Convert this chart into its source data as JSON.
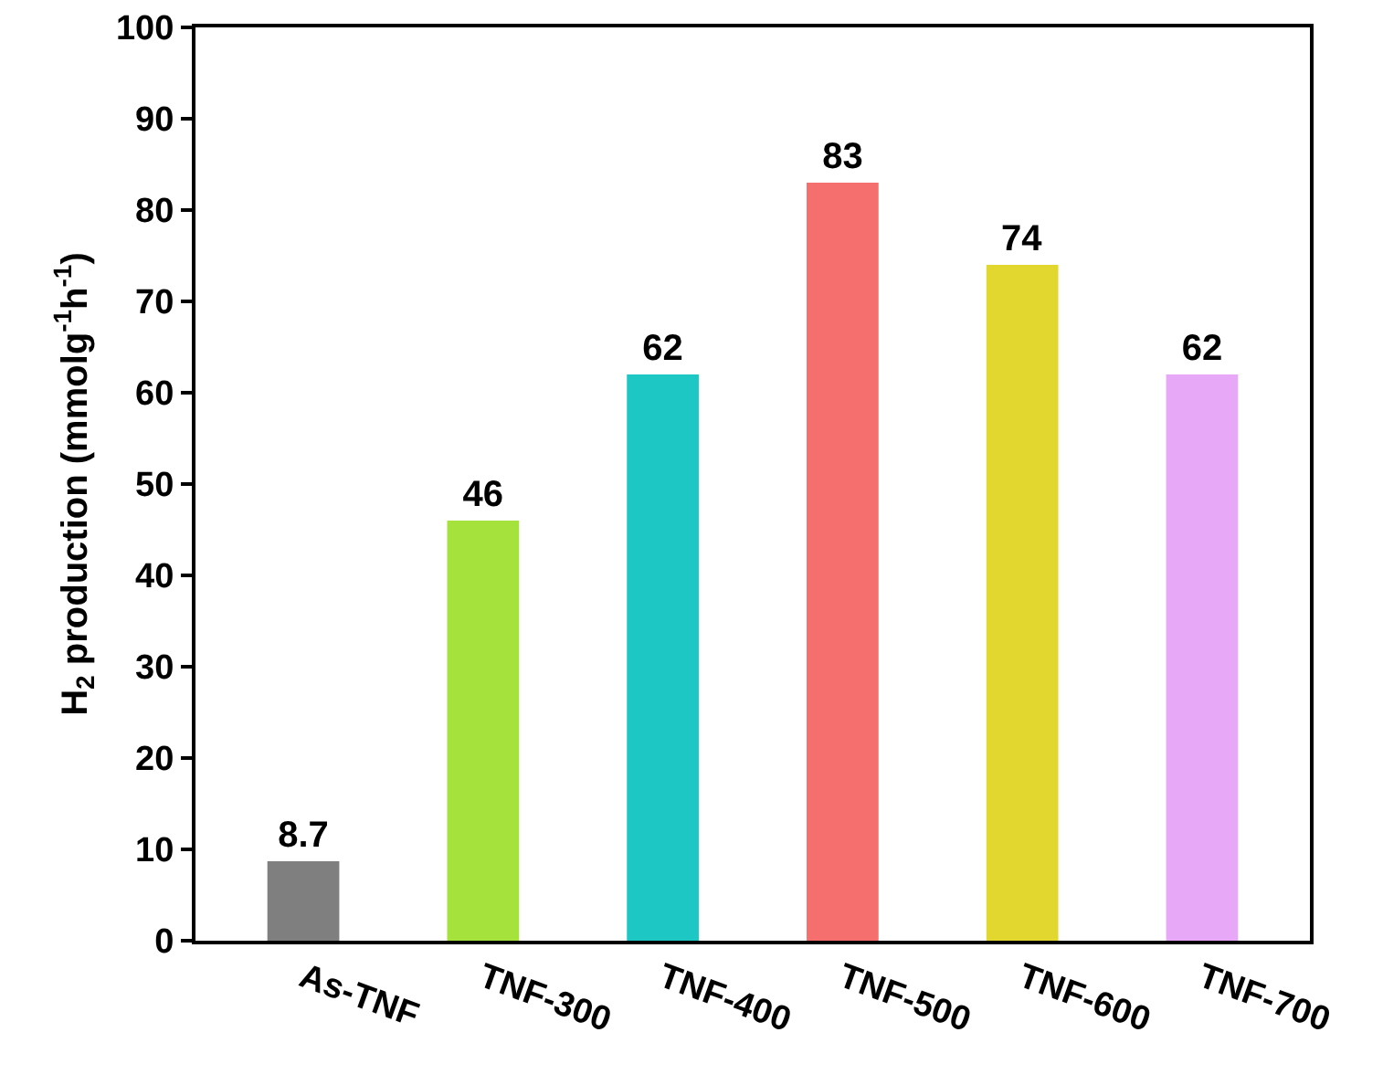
{
  "chart_data": {
    "type": "bar",
    "ylabel": "H$_{2}$ production (mmolg$^{-1}$h$^{-1}$)",
    "categories": [
      "As-TNF",
      "TNF-300",
      "TNF-400",
      "TNF-500",
      "TNF-600",
      "TNF-700"
    ],
    "values": [
      8.7,
      46,
      62,
      83,
      74,
      62
    ],
    "colors": [
      "#7f7f7f",
      "#a5e23c",
      "#1cc7c4",
      "#f66f6f",
      "#e2d72f",
      "#e8a8f8"
    ],
    "ylim": [
      0,
      100
    ],
    "yticks": [
      0,
      10,
      20,
      30,
      40,
      50,
      60,
      70,
      80,
      90,
      100
    ],
    "data_labels": true,
    "grid": false,
    "legend": false
  }
}
